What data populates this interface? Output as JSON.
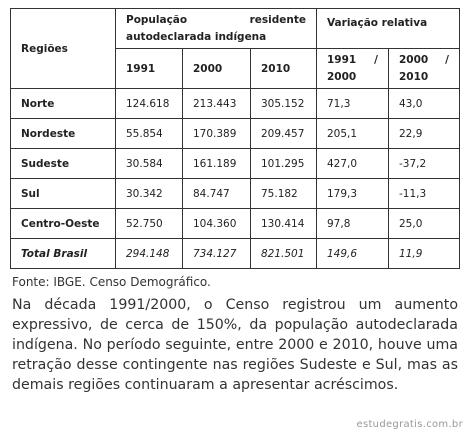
{
  "table": {
    "header": {
      "region": "Regiões",
      "population": "População residente autodeclarada indígena",
      "variation": "Variação relativa",
      "years": [
        "1991",
        "2000",
        "2010"
      ],
      "periods": [
        "1991 / 2000",
        "2000 / 2010"
      ]
    },
    "rows": [
      [
        "Norte",
        "124.618",
        "213.443",
        "305.152",
        "71,3",
        "43,0"
      ],
      [
        "Nordeste",
        "55.854",
        "170.389",
        "209.457",
        "205,1",
        "22,9"
      ],
      [
        "Sudeste",
        "30.584",
        "161.189",
        "101.295",
        "427,0",
        "-37,2"
      ],
      [
        "Sul",
        "30.342",
        "84.747",
        "75.182",
        "179,3",
        "-11,3"
      ],
      [
        "Centro-Oeste",
        "52.750",
        "104.360",
        "130.414",
        "97,8",
        "25,0"
      ],
      [
        "Total Brasil",
        "294.148",
        "734.127",
        "821.501",
        "149,6",
        "11,9"
      ]
    ]
  },
  "source": "Fonte: IBGE. Censo Demográfico.",
  "paragraph": "Na década 1991/2000, o Censo registrou um aumento expressivo, de cerca de 150%, da população autodeclarada indígena. No período seguinte, entre 2000 e 2010, houve uma retração desse contingente nas regiões Sudeste e Sul, mas as demais regiões continuaram a apresentar acréscimos.",
  "watermark": "estudegratis.com.br"
}
